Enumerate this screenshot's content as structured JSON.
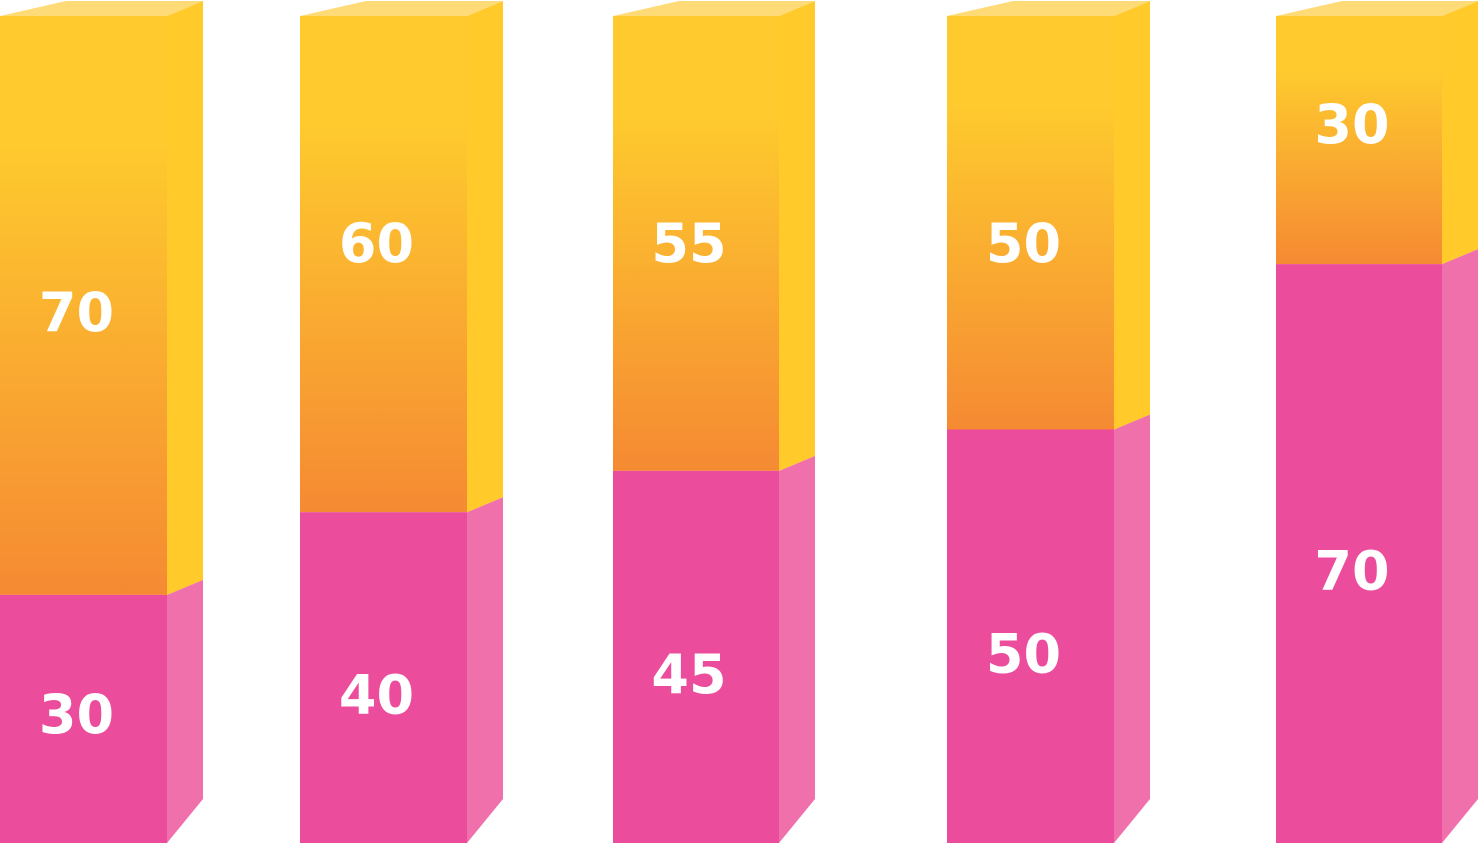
{
  "chart_data": {
    "type": "bar",
    "stacked": true,
    "style": "3d-columns",
    "categories": [
      "",
      "",
      "",
      "",
      ""
    ],
    "ylim": [
      0,
      100
    ],
    "grid": false,
    "legend": "none",
    "series": [
      {
        "values": [
          30,
          40,
          45,
          50,
          70
        ],
        "labels": [
          "30",
          "40",
          "45",
          "50",
          "70"
        ],
        "color": "#EC4C9C",
        "side_color": "#F070AC"
      },
      {
        "values": [
          70,
          60,
          55,
          50,
          30
        ],
        "labels": [
          "70",
          "60",
          "55",
          "50",
          "30"
        ],
        "color": "#FECA2E",
        "gradient_bottom": "#F58A33",
        "side_color": "#FFCA2A",
        "top_color": "#FFDB78"
      }
    ]
  }
}
